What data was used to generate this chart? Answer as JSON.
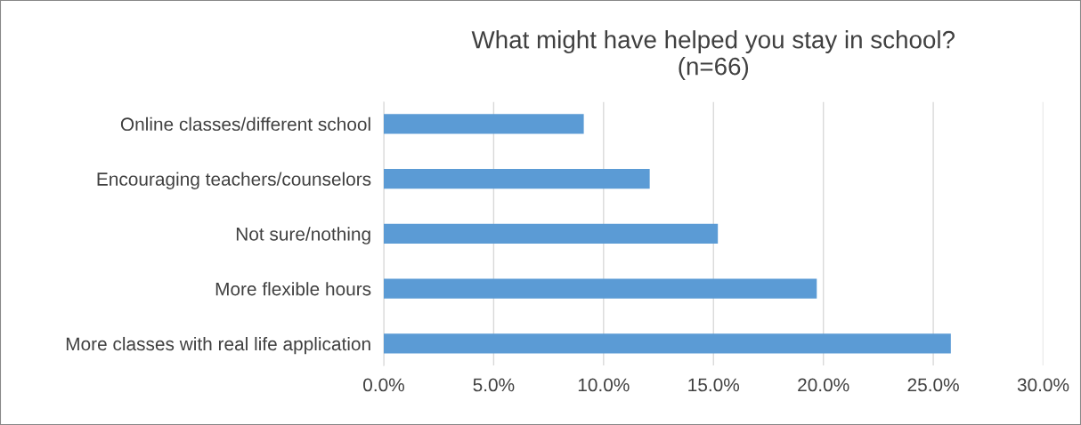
{
  "chart_data": {
    "type": "bar",
    "orientation": "horizontal",
    "title": "What might have helped you stay in school?\n(n=66)",
    "categories": [
      "Online classes/different school",
      "Encouraging teachers/counselors",
      "Not sure/nothing",
      "More flexible hours",
      "More classes with real life application"
    ],
    "values": [
      9.1,
      12.1,
      15.2,
      19.7,
      25.8
    ],
    "color": "#5b9bd5",
    "xlim": [
      0,
      30
    ],
    "xticks": [
      {
        "value": 0,
        "label": "0.0%"
      },
      {
        "value": 5,
        "label": "5.0%"
      },
      {
        "value": 10,
        "label": "10.0%"
      },
      {
        "value": 15,
        "label": "15.0%"
      },
      {
        "value": 20,
        "label": "20.0%"
      },
      {
        "value": 25,
        "label": "25.0%"
      },
      {
        "value": 30,
        "label": "30.0%"
      }
    ],
    "grid": "x"
  }
}
